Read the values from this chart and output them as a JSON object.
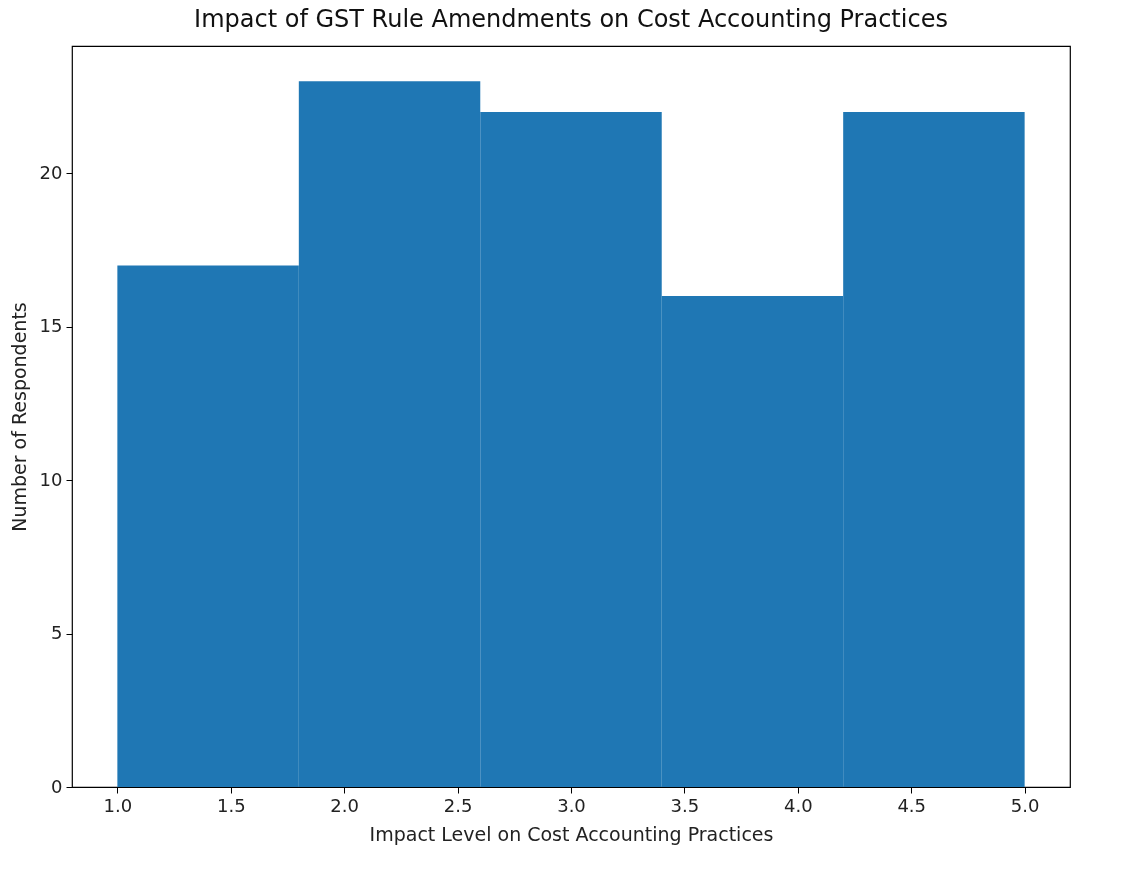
{
  "chart_data": {
    "type": "histogram",
    "title": "Impact of GST Rule Amendments on Cost Accounting Practices",
    "xlabel": "Impact Level on Cost Accounting Practices",
    "ylabel": "Number of Respondents",
    "bins": [
      1.0,
      1.8,
      2.6,
      3.4,
      4.2,
      5.0
    ],
    "values": [
      17,
      23,
      22,
      16,
      22
    ],
    "color": "#1f77b4",
    "xlim": [
      0.8,
      5.2
    ],
    "xticks": [
      {
        "value": 1,
        "label": "1.0"
      },
      {
        "value": 1.5,
        "label": "1.5"
      },
      {
        "value": 2,
        "label": "2.0"
      },
      {
        "value": 2.5,
        "label": "2.5"
      },
      {
        "value": 3,
        "label": "3.0"
      },
      {
        "value": 3.5,
        "label": "3.5"
      },
      {
        "value": 4,
        "label": "4.0"
      },
      {
        "value": 4.5,
        "label": "4.5"
      },
      {
        "value": 5,
        "label": "5.0"
      }
    ],
    "ylim": [
      0,
      24.15
    ],
    "yticks": [
      0,
      5,
      10,
      15,
      20
    ],
    "grid": false
  }
}
